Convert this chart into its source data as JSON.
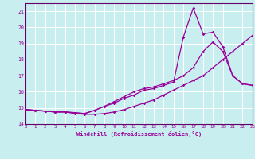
{
  "xlabel": "Windchill (Refroidissement éolien,°C)",
  "bg_color": "#c8eef0",
  "line_color": "#990099",
  "grid_color": "#ffffff",
  "border_color": "#660066",
  "xmin": 0,
  "xmax": 23,
  "ymin": 14,
  "ymax": 21.5,
  "yticks": [
    14,
    15,
    16,
    17,
    18,
    19,
    20,
    21
  ],
  "xticks": [
    0,
    1,
    2,
    3,
    4,
    5,
    6,
    7,
    8,
    9,
    10,
    11,
    12,
    13,
    14,
    15,
    16,
    17,
    18,
    19,
    20,
    21,
    22,
    23
  ],
  "line1_x": [
    0,
    1,
    2,
    3,
    4,
    5,
    6,
    7,
    8,
    9,
    10,
    11,
    12,
    13,
    14,
    15,
    16,
    17,
    18,
    19,
    20,
    21,
    22,
    23
  ],
  "line1_y": [
    14.9,
    14.85,
    14.8,
    14.75,
    14.75,
    14.7,
    14.65,
    14.85,
    15.1,
    15.4,
    15.7,
    16.0,
    16.2,
    16.3,
    16.5,
    16.7,
    17.0,
    17.5,
    18.5,
    19.1,
    18.5,
    17.0,
    16.5,
    16.4
  ],
  "line2_x": [
    0,
    1,
    2,
    3,
    4,
    5,
    6,
    7,
    8,
    9,
    10,
    11,
    12,
    13,
    14,
    15,
    16,
    17,
    18,
    19,
    20,
    21,
    22,
    23
  ],
  "line2_y": [
    14.9,
    14.85,
    14.8,
    14.75,
    14.75,
    14.7,
    14.65,
    14.85,
    15.1,
    15.3,
    15.6,
    15.8,
    16.1,
    16.2,
    16.4,
    16.6,
    19.4,
    21.2,
    19.6,
    19.7,
    18.8,
    17.0,
    16.5,
    16.4
  ],
  "line3_x": [
    0,
    1,
    2,
    3,
    4,
    5,
    6,
    7,
    8,
    9,
    10,
    11,
    12,
    13,
    14,
    15,
    16,
    17,
    18,
    19,
    20,
    21,
    22,
    23
  ],
  "line3_y": [
    14.9,
    14.85,
    14.8,
    14.75,
    14.75,
    14.65,
    14.6,
    14.6,
    14.65,
    14.75,
    14.9,
    15.1,
    15.3,
    15.5,
    15.8,
    16.1,
    16.4,
    16.7,
    17.0,
    17.5,
    18.0,
    18.5,
    19.0,
    19.5
  ]
}
